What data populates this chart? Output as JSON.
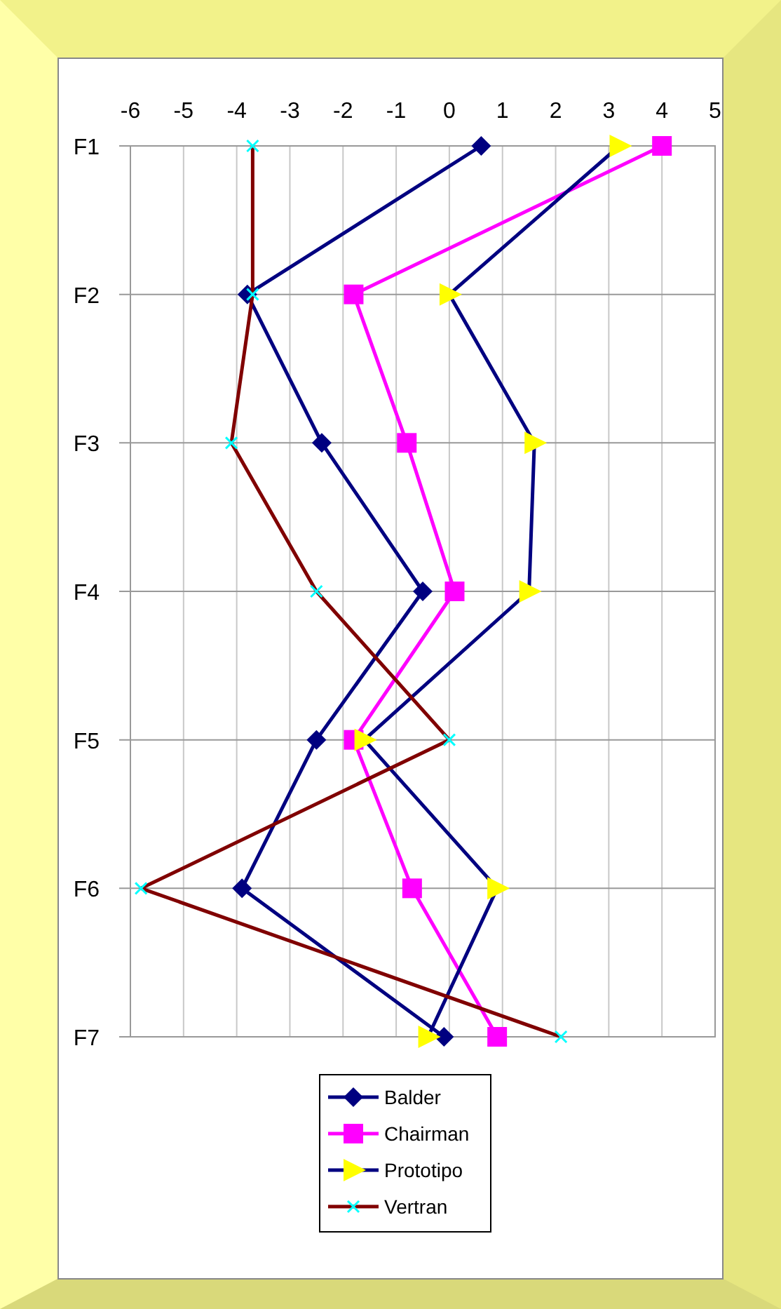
{
  "chart_data": {
    "type": "line",
    "orientation": "horizontal",
    "categories": [
      "F1",
      "F2",
      "F3",
      "F4",
      "F5",
      "F6",
      "F7"
    ],
    "xlim": [
      -6,
      5
    ],
    "xticks": [
      -6,
      -5,
      -4,
      -3,
      -2,
      -1,
      0,
      1,
      2,
      3,
      4,
      5
    ],
    "grid": true,
    "legend": "bottom",
    "series": [
      {
        "name": "Balder",
        "color": "#000080",
        "marker": "diamond",
        "values": [
          0.6,
          -3.8,
          -2.4,
          -0.5,
          -2.5,
          -3.9,
          -0.1
        ]
      },
      {
        "name": "Chairman",
        "color": "#ff00ff",
        "marker": "square",
        "values": [
          4.0,
          -1.8,
          -0.8,
          0.1,
          -1.8,
          -0.7,
          0.9
        ]
      },
      {
        "name": "Prototipo",
        "color": "#000080",
        "colors": [
          "#ffff00",
          "#ffff00",
          "#ffff00",
          "#ffff00",
          "#ffff00",
          "#ffff00",
          "#ffff00"
        ],
        "marker": "triangle",
        "values": [
          3.2,
          0,
          1.6,
          1.5,
          -1.6,
          0.9,
          -0.4
        ]
      },
      {
        "name": "Vertran",
        "color": "#800000",
        "colors": [
          "#00ffff",
          "#00ffff",
          "#00ffff",
          "#00ffff",
          "#00ffff",
          "#00ffff",
          "#00ffff"
        ],
        "marker": "cross",
        "values": [
          -3.7,
          -3.7,
          -4.1,
          -2.5,
          0,
          -5.8,
          2.1
        ]
      }
    ]
  }
}
